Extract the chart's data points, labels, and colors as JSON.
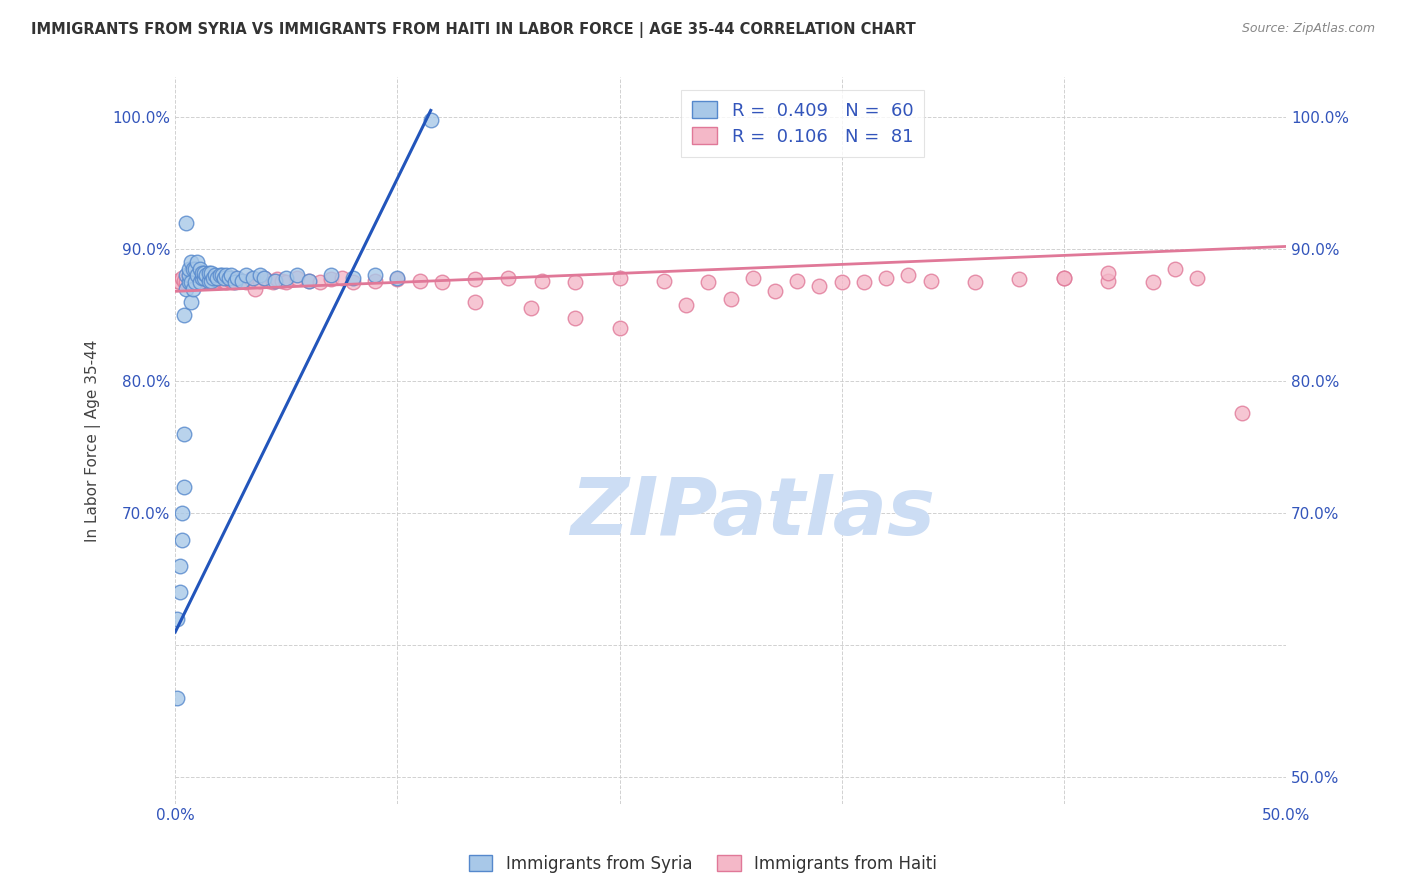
{
  "title": "IMMIGRANTS FROM SYRIA VS IMMIGRANTS FROM HAITI IN LABOR FORCE | AGE 35-44 CORRELATION CHART",
  "source": "Source: ZipAtlas.com",
  "ylabel": "In Labor Force | Age 35-44",
  "x_min": 0.0,
  "x_max": 0.5,
  "y_min": 0.48,
  "y_max": 1.03,
  "syria_color": "#a8c8e8",
  "syria_edge_color": "#5588cc",
  "haiti_color": "#f4b8c8",
  "haiti_edge_color": "#e07898",
  "syria_line_color": "#2255bb",
  "haiti_line_color": "#e07898",
  "syria_R": 0.409,
  "syria_N": 60,
  "haiti_R": 0.106,
  "haiti_N": 81,
  "legend_label_syria": "Immigrants from Syria",
  "legend_label_haiti": "Immigrants from Haiti",
  "watermark": "ZIPatlas",
  "watermark_color": "#ccddf4",
  "syria_line_x0": 0.0,
  "syria_line_y0": 0.61,
  "syria_line_x1": 0.115,
  "syria_line_y1": 1.005,
  "haiti_line_x0": 0.0,
  "haiti_line_y0": 0.868,
  "haiti_line_x1": 0.5,
  "haiti_line_y1": 0.902,
  "syria_x": [
    0.001,
    0.001,
    0.002,
    0.002,
    0.003,
    0.003,
    0.004,
    0.004,
    0.004,
    0.005,
    0.005,
    0.005,
    0.006,
    0.006,
    0.006,
    0.007,
    0.007,
    0.007,
    0.008,
    0.008,
    0.009,
    0.009,
    0.01,
    0.01,
    0.011,
    0.011,
    0.012,
    0.012,
    0.013,
    0.013,
    0.014,
    0.015,
    0.015,
    0.016,
    0.016,
    0.017,
    0.018,
    0.019,
    0.02,
    0.021,
    0.022,
    0.023,
    0.024,
    0.025,
    0.027,
    0.028,
    0.03,
    0.032,
    0.035,
    0.038,
    0.04,
    0.045,
    0.05,
    0.055,
    0.06,
    0.07,
    0.08,
    0.09,
    0.1,
    0.115
  ],
  "syria_y": [
    0.56,
    0.62,
    0.64,
    0.66,
    0.68,
    0.7,
    0.72,
    0.76,
    0.85,
    0.87,
    0.88,
    0.92,
    0.875,
    0.88,
    0.885,
    0.86,
    0.875,
    0.89,
    0.87,
    0.885,
    0.875,
    0.885,
    0.88,
    0.89,
    0.875,
    0.885,
    0.878,
    0.882,
    0.878,
    0.882,
    0.88,
    0.876,
    0.882,
    0.876,
    0.882,
    0.878,
    0.88,
    0.878,
    0.88,
    0.88,
    0.878,
    0.88,
    0.878,
    0.88,
    0.875,
    0.878,
    0.876,
    0.88,
    0.878,
    0.88,
    0.878,
    0.876,
    0.878,
    0.88,
    0.876,
    0.88,
    0.878,
    0.88,
    0.878,
    0.998
  ],
  "haiti_x": [
    0.001,
    0.002,
    0.003,
    0.004,
    0.005,
    0.006,
    0.007,
    0.008,
    0.009,
    0.01,
    0.011,
    0.012,
    0.013,
    0.014,
    0.015,
    0.016,
    0.017,
    0.018,
    0.019,
    0.02,
    0.021,
    0.022,
    0.023,
    0.024,
    0.025,
    0.026,
    0.027,
    0.028,
    0.03,
    0.032,
    0.034,
    0.036,
    0.038,
    0.04,
    0.042,
    0.044,
    0.046,
    0.048,
    0.05,
    0.055,
    0.06,
    0.065,
    0.07,
    0.075,
    0.08,
    0.09,
    0.1,
    0.11,
    0.12,
    0.135,
    0.15,
    0.165,
    0.18,
    0.2,
    0.22,
    0.24,
    0.26,
    0.28,
    0.3,
    0.32,
    0.34,
    0.36,
    0.38,
    0.4,
    0.42,
    0.44,
    0.46,
    0.135,
    0.16,
    0.18,
    0.2,
    0.23,
    0.25,
    0.27,
    0.29,
    0.31,
    0.33,
    0.4,
    0.42,
    0.45,
    0.48
  ],
  "haiti_y": [
    0.876,
    0.875,
    0.878,
    0.876,
    0.875,
    0.878,
    0.877,
    0.876,
    0.875,
    0.877,
    0.876,
    0.875,
    0.878,
    0.876,
    0.875,
    0.878,
    0.877,
    0.876,
    0.875,
    0.877,
    0.876,
    0.876,
    0.875,
    0.877,
    0.876,
    0.875,
    0.878,
    0.877,
    0.876,
    0.875,
    0.877,
    0.87,
    0.876,
    0.878,
    0.876,
    0.875,
    0.877,
    0.876,
    0.875,
    0.878,
    0.876,
    0.875,
    0.877,
    0.878,
    0.875,
    0.876,
    0.877,
    0.876,
    0.875,
    0.877,
    0.878,
    0.876,
    0.875,
    0.878,
    0.876,
    0.875,
    0.878,
    0.876,
    0.875,
    0.878,
    0.876,
    0.875,
    0.877,
    0.878,
    0.876,
    0.875,
    0.878,
    0.86,
    0.855,
    0.848,
    0.84,
    0.858,
    0.862,
    0.868,
    0.872,
    0.875,
    0.88,
    0.878,
    0.882,
    0.885,
    0.776
  ]
}
